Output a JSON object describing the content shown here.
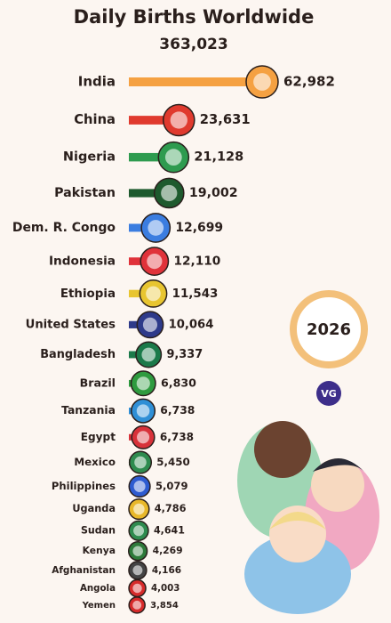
{
  "chart_data": {
    "type": "bar",
    "orientation": "horizontal",
    "title": "Daily Births Worldwide",
    "subtitle": "363,023",
    "year_badge": "2026",
    "logo": "VG",
    "categories": [
      "India",
      "China",
      "Nigeria",
      "Pakistan",
      "Dem. R. Congo",
      "Indonesia",
      "Ethiopia",
      "United States",
      "Bangladesh",
      "Brazil",
      "Tanzania",
      "Egypt",
      "Mexico",
      "Philippines",
      "Uganda",
      "Sudan",
      "Kenya",
      "Afghanistan",
      "Angola",
      "Yemen"
    ],
    "values": [
      62982,
      23631,
      21128,
      19002,
      12699,
      12110,
      11543,
      10064,
      9337,
      6830,
      6738,
      6738,
      5450,
      5079,
      4786,
      4641,
      4269,
      4166,
      4003,
      3854
    ],
    "value_labels": [
      "62,982",
      "23,631",
      "21,128",
      "19,002",
      "12,699",
      "12,110",
      "11,543",
      "10,064",
      "9,337",
      "6,830",
      "6,738",
      "6,738",
      "5,450",
      "5,079",
      "4,786",
      "4,641",
      "4,269",
      "4,166",
      "4,003",
      "3,854"
    ],
    "colors": [
      "#f5a142",
      "#e03a2e",
      "#2e9b4f",
      "#1e5a2e",
      "#3b7de0",
      "#e0323a",
      "#e8c530",
      "#2e3a8a",
      "#1b7a4a",
      "#2e9b3f",
      "#2f8fd6",
      "#d8323a",
      "#2e8b4f",
      "#2d5bd0",
      "#e8b82a",
      "#2e8b4f",
      "#2e7a3a",
      "#444444",
      "#d62a2a",
      "#d62a2a"
    ]
  }
}
